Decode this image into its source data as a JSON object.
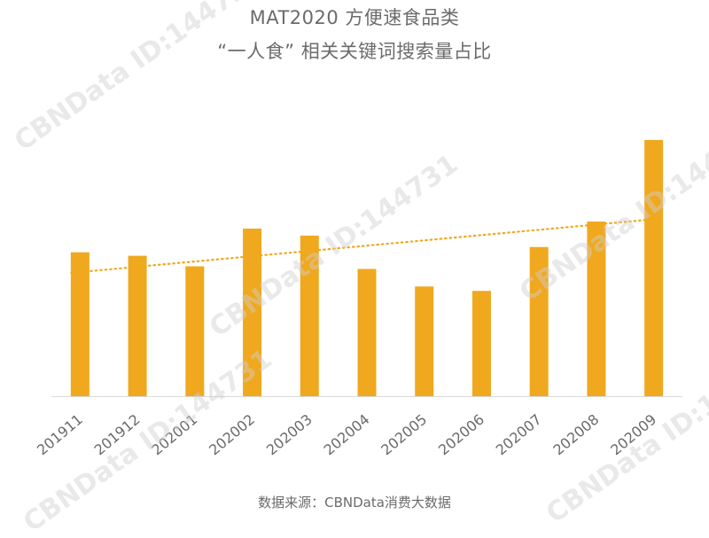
{
  "chart_data": {
    "type": "bar",
    "title": "MAT2020 方便速食品类",
    "subtitle": "“一人食” 相关关键词搜索量占比",
    "categories": [
      "201911",
      "201912",
      "202001",
      "202002",
      "202003",
      "202004",
      "202005",
      "202006",
      "202007",
      "202008",
      "202009"
    ],
    "values": [
      164,
      160,
      148,
      191,
      183,
      145,
      125,
      120,
      170,
      199,
      292
    ],
    "trendline": {
      "style": "dotted",
      "color": "#f0a81e"
    },
    "xlabel": "",
    "ylabel": "",
    "ylim": [
      0,
      300
    ],
    "grid": false,
    "legend": "none"
  },
  "source": "数据来源：CBNData消费大数据",
  "watermark": "CBNData ID:144731",
  "colors": {
    "bar": "#f0a81e",
    "axis": "#d9d9d9",
    "text": "#6b6b6b"
  }
}
